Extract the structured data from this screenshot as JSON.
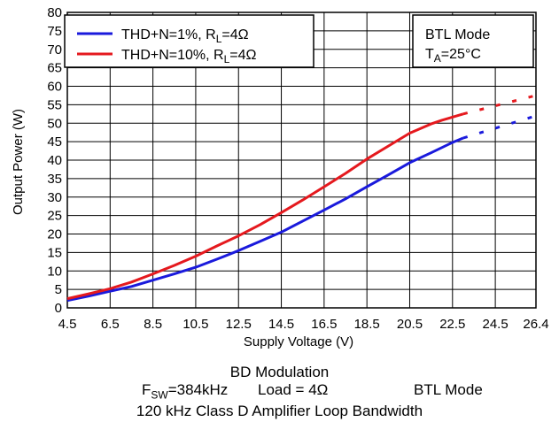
{
  "chart_data": {
    "type": "line",
    "xlabel": "Supply Voltage (V)",
    "ylabel": "Output Power (W)",
    "xlim": [
      4.5,
      26.4
    ],
    "ylim": [
      0,
      80
    ],
    "x_ticks": [
      "4.5",
      "6.5",
      "8.5",
      "10.5",
      "12.5",
      "14.5",
      "16.5",
      "18.5",
      "20.5",
      "22.5",
      "24.5",
      "26.4"
    ],
    "y_ticks": [
      "0",
      "5",
      "10",
      "15",
      "20",
      "25",
      "30",
      "35",
      "40",
      "45",
      "50",
      "55",
      "60",
      "65",
      "70",
      "75",
      "80"
    ],
    "grid": true,
    "legend_position": "top-left",
    "series": [
      {
        "legend_prefix": "THD+N=1%, R",
        "legend_sub": "L",
        "legend_suffix": "=4Ω",
        "color": "#1a1adc",
        "x": [
          4.5,
          5.5,
          6.5,
          7.5,
          8.5,
          9.5,
          10.5,
          11.5,
          12.5,
          13.5,
          14.5,
          15.5,
          16.5,
          17.5,
          18.5,
          19.5,
          20.5,
          21.5,
          22.5,
          23.0
        ],
        "y": [
          2.0,
          3.2,
          4.5,
          5.8,
          7.5,
          9.2,
          11.0,
          13.2,
          15.5,
          18.0,
          20.5,
          23.5,
          26.5,
          29.5,
          32.8,
          36.0,
          39.3,
          42.0,
          44.8,
          46.0
        ],
        "dashed_x": [
          23.0,
          26.4
        ],
        "dashed_y": [
          46.0,
          52.0
        ]
      },
      {
        "legend_prefix": "THD+N=10%, R",
        "legend_sub": "L",
        "legend_suffix": "=4Ω",
        "color": "#e5191e",
        "x": [
          4.5,
          5.5,
          6.5,
          7.5,
          8.5,
          9.5,
          10.5,
          11.5,
          12.5,
          13.5,
          14.5,
          15.5,
          16.5,
          17.5,
          18.5,
          19.5,
          20.5,
          21.5,
          22.0,
          23.0
        ],
        "y": [
          2.5,
          3.8,
          5.2,
          7.0,
          9.2,
          11.5,
          14.0,
          16.8,
          19.5,
          22.5,
          25.8,
          29.2,
          32.8,
          36.4,
          40.3,
          43.8,
          47.3,
          49.8,
          50.8,
          52.5
        ],
        "dashed_x": [
          23.0,
          26.4
        ],
        "dashed_y": [
          52.5,
          57.5
        ]
      }
    ],
    "annotation": {
      "line1": "BTL Mode",
      "line2_prefix": "T",
      "line2_sub": "A",
      "line2_suffix": "=25°C"
    }
  },
  "caption": {
    "line1": "BD Modulation",
    "fsw_prefix": "F",
    "fsw_sub": "SW",
    "fsw_suffix": "=384kHz",
    "load": "Load = 4Ω",
    "mode": "BTL Mode",
    "line3": "120 kHz Class D Amplifier Loop Bandwidth"
  }
}
